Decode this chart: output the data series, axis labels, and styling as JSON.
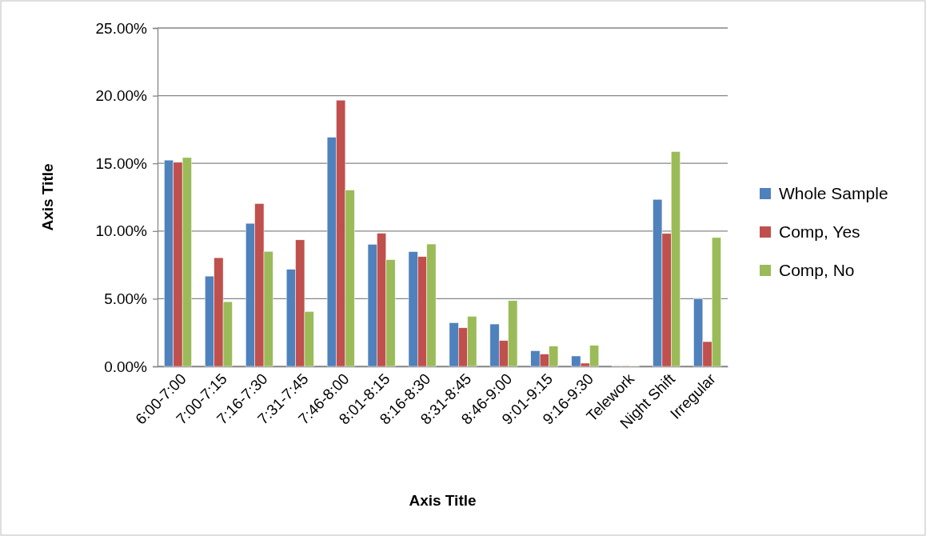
{
  "chart_data": {
    "type": "bar",
    "xlabel": "Axis Title",
    "ylabel": "Axis Title",
    "categories": [
      "6:00-7:00",
      "7:00-7:15",
      "7:16-7:30",
      "7:31-7:45",
      "7:46-8:00",
      "8:01-8:15",
      "8:16-8:30",
      "8:31-8:45",
      "8:46-9:00",
      "9:01-9:15",
      "9:16-9:30",
      "Telework",
      "Night Shift",
      "Irregular"
    ],
    "series": [
      {
        "name": "Whole Sample",
        "color": "#4f81bd",
        "values": [
          15.24,
          6.67,
          10.57,
          7.17,
          16.93,
          9.02,
          8.48,
          3.23,
          3.13,
          1.16,
          0.77,
          0.05,
          12.34,
          5.0
        ]
      },
      {
        "name": "Comp, Yes",
        "color": "#c0504d",
        "values": [
          15.08,
          8.03,
          12.03,
          9.35,
          19.67,
          9.84,
          8.11,
          2.85,
          1.91,
          0.91,
          0.24,
          0.05,
          9.82,
          1.83
        ]
      },
      {
        "name": "Comp, No",
        "color": "#9bbb59",
        "values": [
          15.43,
          4.78,
          8.5,
          4.06,
          13.03,
          7.89,
          9.04,
          3.7,
          4.86,
          1.5,
          1.55,
          0.05,
          15.87,
          9.52
        ]
      }
    ],
    "ylim": [
      0,
      25
    ],
    "yticks": [
      {
        "value": 0,
        "label": "0.00%"
      },
      {
        "value": 5,
        "label": "5.00%"
      },
      {
        "value": 10,
        "label": "10.00%"
      },
      {
        "value": 15,
        "label": "15.00%"
      },
      {
        "value": 20,
        "label": "20.00%"
      },
      {
        "value": 25,
        "label": "25.00%"
      }
    ],
    "grid": "y",
    "legend": "right"
  }
}
